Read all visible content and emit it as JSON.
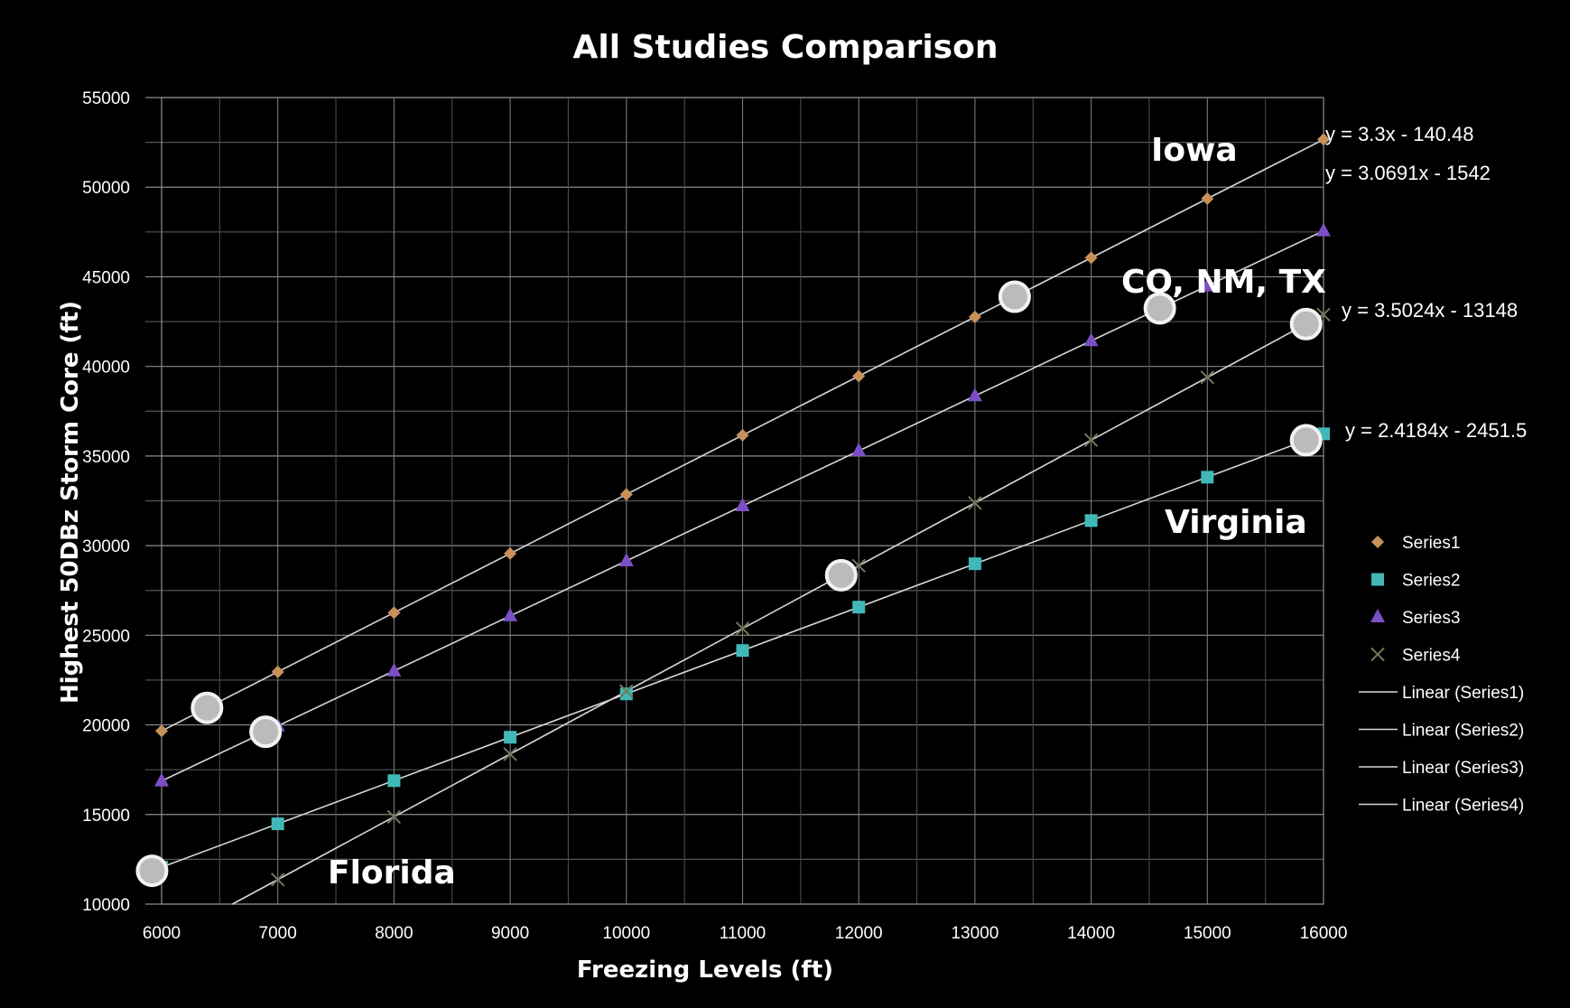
{
  "chart_data": {
    "type": "scatter",
    "title": "All Studies Comparison",
    "xlabel": "Freezing Levels (ft)",
    "ylabel": "Highest 50DBz Storm Core (ft)",
    "xlim": [
      6000,
      16000
    ],
    "ylim": [
      10000,
      55000
    ],
    "xticks": [
      "6000",
      "7000",
      "8000",
      "9000",
      "10000",
      "11000",
      "12000",
      "13000",
      "14000",
      "15000",
      "16000"
    ],
    "yticks": [
      "10000",
      "15000",
      "20000",
      "25000",
      "30000",
      "35000",
      "40000",
      "45000",
      "50000",
      "55000"
    ],
    "grid": true,
    "legend_position": "right",
    "series": [
      {
        "name": "Series1",
        "marker": "diamond",
        "color": "#c8915a",
        "x": [
          6000,
          7000,
          8000,
          9000,
          10000,
          11000,
          12000,
          13000,
          14000,
          15000,
          16000
        ],
        "y": [
          19660,
          22960,
          26260,
          29560,
          32860,
          36160,
          39460,
          42760,
          46060,
          49360,
          52660
        ],
        "trendline": {
          "name": "Linear (Series1)",
          "slope": 3.3,
          "intercept": -140.48,
          "equation": "y = 3.3x - 140.48"
        }
      },
      {
        "name": "Series2",
        "marker": "square",
        "color": "#40b8b8",
        "x": [
          6000,
          7000,
          8000,
          9000,
          10000,
          11000,
          12000,
          13000,
          14000,
          15000,
          16000
        ],
        "y": [
          12060,
          14480,
          16890,
          19310,
          21730,
          24150,
          26570,
          28990,
          31400,
          33820,
          36240
        ],
        "trendline": {
          "name": "Linear (Series2)",
          "slope": 2.4184,
          "intercept": -2451.5,
          "equation": "y = 2.4184x - 2451.5"
        }
      },
      {
        "name": "Series3",
        "marker": "triangle",
        "color": "#7b4fc4",
        "x": [
          6000,
          7000,
          8000,
          9000,
          10000,
          11000,
          12000,
          13000,
          14000,
          15000,
          16000
        ],
        "y": [
          16870,
          19940,
          23010,
          26080,
          29150,
          32220,
          35290,
          38360,
          41430,
          44490,
          47560
        ],
        "trendline": {
          "name": "Linear (Series3)",
          "slope": 3.0691,
          "intercept": -1542,
          "equation": "y = 3.0691x - 1542"
        }
      },
      {
        "name": "Series4",
        "marker": "x",
        "color": "#6e7a5a",
        "x": [
          7000,
          8000,
          9000,
          10000,
          11000,
          12000,
          13000,
          14000,
          15000,
          16000
        ],
        "y": [
          11370,
          14870,
          18370,
          21880,
          25380,
          28880,
          32380,
          35890,
          39390,
          42890
        ],
        "trendline": {
          "name": "Linear (Series4)",
          "slope": 3.5024,
          "intercept": -13148,
          "equation": "y = 3.5024x - 13148"
        }
      }
    ],
    "annotations": [
      "Iowa",
      "CO, NM, TX",
      "Virginia",
      "Florida"
    ]
  },
  "legend": {
    "items": [
      "Series1",
      "Series2",
      "Series3",
      "Series4",
      "Linear (Series1)",
      "Linear (Series2)",
      "Linear (Series3)",
      "Linear (Series4)"
    ]
  }
}
